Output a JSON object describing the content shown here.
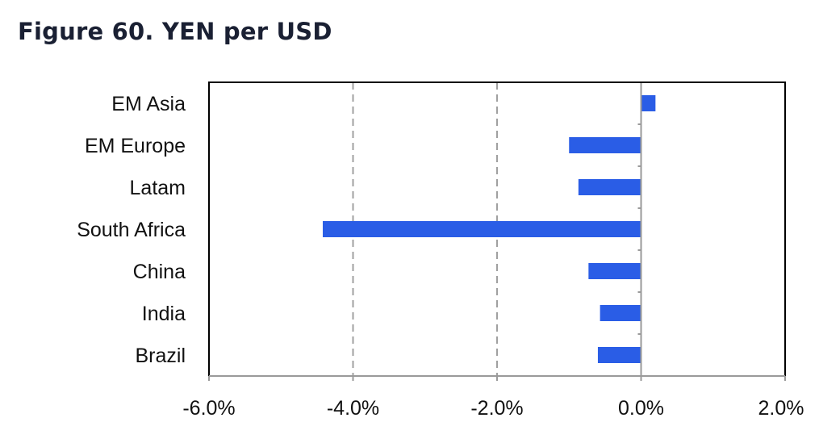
{
  "figure": {
    "title": "Figure 60. YEN per USD"
  },
  "chart_data": {
    "type": "bar",
    "orientation": "horizontal",
    "title": "Figure 60. YEN per USD",
    "xlabel": "",
    "ylabel": "",
    "categories": [
      "EM Asia",
      "EM Europe",
      "Latam",
      "South Africa",
      "China",
      "India",
      "Brazil"
    ],
    "values": [
      0.2,
      -1.0,
      -0.87,
      -4.42,
      -0.73,
      -0.57,
      -0.6
    ],
    "value_unit": "%",
    "xlim": [
      -6.0,
      2.0
    ],
    "x_ticks": [
      -6.0,
      -4.0,
      -2.0,
      0.0,
      2.0
    ],
    "x_tick_labels": [
      "-6.0%",
      "-4.0%",
      "-2.0%",
      "0.0%",
      "2.0%"
    ],
    "gridlines": "vertical dashed at -4.0% and -2.0%",
    "bar_color": "#2a5de6",
    "legend": "none"
  }
}
